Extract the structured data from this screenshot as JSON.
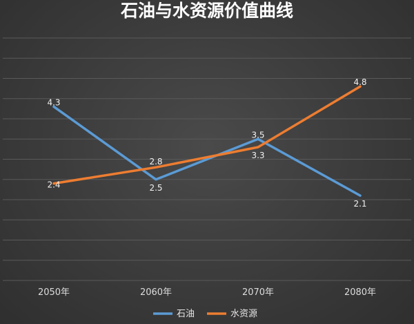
{
  "chart_data": {
    "type": "line",
    "title": "石油与水资源价值曲线",
    "xlabel": "",
    "ylabel": "",
    "categories": [
      "2050年",
      "2060年",
      "2070年",
      "2080年"
    ],
    "ylim": [
      0,
      6
    ],
    "grid": true,
    "legend": "bottom",
    "series": [
      {
        "name": "石油",
        "values": [
          4.3,
          2.5,
          3.5,
          2.1
        ],
        "color": "#5b9bd5"
      },
      {
        "name": "水资源",
        "values": [
          2.4,
          2.8,
          3.3,
          4.8
        ],
        "color": "#ed7d31"
      }
    ]
  }
}
